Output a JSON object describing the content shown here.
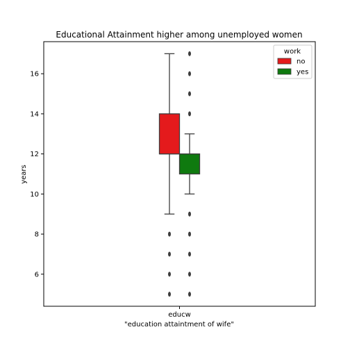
{
  "chart_data": {
    "type": "box",
    "title": "Educational Attainment higher among unemployed women",
    "xlabel": "\"education attaintment of wife\"",
    "ylabel": "years",
    "categories": [
      "educw"
    ],
    "ylim": [
      4.4,
      17.6
    ],
    "yticks": [
      6,
      8,
      10,
      12,
      14,
      16
    ],
    "legend": {
      "title": "work",
      "position": "top-right"
    },
    "series": [
      {
        "name": "no",
        "color": "#e41a1c",
        "whisker_low": 9,
        "q1": 12,
        "median": 12,
        "q3": 14,
        "whisker_high": 17,
        "outliers": [
          8,
          7,
          6,
          5
        ]
      },
      {
        "name": "yes",
        "color": "#0f7a0f",
        "whisker_low": 10,
        "q1": 11,
        "median": 12,
        "q3": 12,
        "whisker_high": 13,
        "outliers": [
          17,
          16,
          15,
          14,
          9,
          8,
          7,
          6,
          5
        ]
      }
    ]
  }
}
